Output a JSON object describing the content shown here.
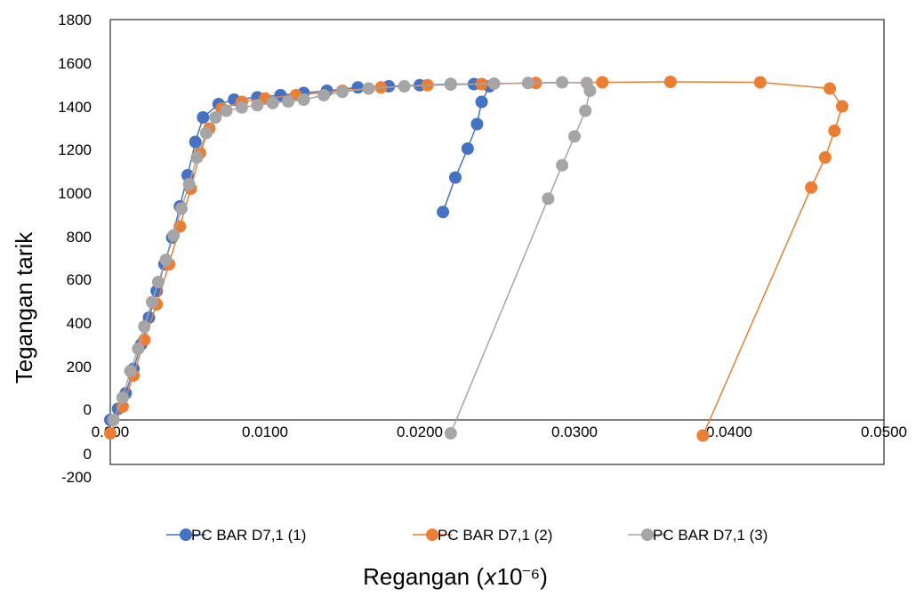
{
  "chart_data": {
    "type": "scatter",
    "xlabel": "Regangan (𝑥10⁻⁶)",
    "ylabel": "Tegangan tarik",
    "xlim": [
      0,
      0.05
    ],
    "ylim": [
      -200,
      1800
    ],
    "y_ticks": [
      "1800",
      "1600",
      "1400",
      "1200",
      "1000",
      "800",
      "600",
      "400",
      "200",
      "0",
      "0",
      "-200"
    ],
    "x_ticks": [
      "0.000",
      "0.0100",
      "0.0200",
      "0.0300",
      "0.0400",
      "0.0500"
    ],
    "grid": false,
    "legend_position": "bottom",
    "series": [
      {
        "name": "PC BAR D7,1 (1)",
        "color": "#4472c4",
        "points": [
          [
            0.0,
            0
          ],
          [
            0.0005,
            50
          ],
          [
            0.001,
            120
          ],
          [
            0.0015,
            230
          ],
          [
            0.002,
            340
          ],
          [
            0.0025,
            460
          ],
          [
            0.003,
            580
          ],
          [
            0.0035,
            700
          ],
          [
            0.004,
            820
          ],
          [
            0.0045,
            960
          ],
          [
            0.005,
            1100
          ],
          [
            0.0055,
            1250
          ],
          [
            0.006,
            1360
          ],
          [
            0.007,
            1420
          ],
          [
            0.008,
            1440
          ],
          [
            0.0095,
            1450
          ],
          [
            0.011,
            1460
          ],
          [
            0.0125,
            1470
          ],
          [
            0.014,
            1480
          ],
          [
            0.016,
            1495
          ],
          [
            0.018,
            1500
          ],
          [
            0.02,
            1505
          ],
          [
            0.022,
            1510
          ],
          [
            0.0235,
            1510
          ],
          [
            0.024,
            1510
          ],
          [
            0.0245,
            1500
          ],
          [
            0.024,
            1430
          ],
          [
            0.0237,
            1330
          ],
          [
            0.0231,
            1220
          ],
          [
            0.0223,
            1090
          ],
          [
            0.0215,
            935
          ]
        ]
      },
      {
        "name": "PC BAR D7,1 (2)",
        "color": "#ed7d31",
        "points": [
          [
            0.0,
            -60
          ],
          [
            0.0008,
            60
          ],
          [
            0.0015,
            200
          ],
          [
            0.0022,
            360
          ],
          [
            0.003,
            520
          ],
          [
            0.0038,
            700
          ],
          [
            0.0045,
            870
          ],
          [
            0.0052,
            1040
          ],
          [
            0.0058,
            1200
          ],
          [
            0.0064,
            1310
          ],
          [
            0.0072,
            1400
          ],
          [
            0.0085,
            1430
          ],
          [
            0.01,
            1445
          ],
          [
            0.012,
            1460
          ],
          [
            0.015,
            1480
          ],
          [
            0.0175,
            1495
          ],
          [
            0.0205,
            1505
          ],
          [
            0.024,
            1510
          ],
          [
            0.0275,
            1515
          ],
          [
            0.0318,
            1518
          ],
          [
            0.0362,
            1520
          ],
          [
            0.042,
            1518
          ],
          [
            0.0465,
            1490
          ],
          [
            0.0473,
            1410
          ],
          [
            0.0468,
            1300
          ],
          [
            0.0462,
            1180
          ],
          [
            0.0453,
            1045
          ],
          [
            0.0383,
            -70
          ]
        ]
      },
      {
        "name": "PC BAR D7,1 (3)",
        "color": "#a5a5a5",
        "points": [
          [
            0.0002,
            0
          ],
          [
            0.0008,
            100
          ],
          [
            0.0013,
            220
          ],
          [
            0.0018,
            320
          ],
          [
            0.0022,
            420
          ],
          [
            0.0027,
            530
          ],
          [
            0.0031,
            620
          ],
          [
            0.0036,
            720
          ],
          [
            0.0041,
            830
          ],
          [
            0.0046,
            950
          ],
          [
            0.0051,
            1060
          ],
          [
            0.0056,
            1180
          ],
          [
            0.0062,
            1290
          ],
          [
            0.0068,
            1360
          ],
          [
            0.0075,
            1390
          ],
          [
            0.0085,
            1405
          ],
          [
            0.0095,
            1415
          ],
          [
            0.0105,
            1425
          ],
          [
            0.0115,
            1432
          ],
          [
            0.0125,
            1440
          ],
          [
            0.0138,
            1460
          ],
          [
            0.015,
            1475
          ],
          [
            0.0167,
            1490
          ],
          [
            0.019,
            1500
          ],
          [
            0.022,
            1508
          ],
          [
            0.0248,
            1512
          ],
          [
            0.027,
            1515
          ],
          [
            0.0292,
            1518
          ],
          [
            0.0308,
            1515
          ],
          [
            0.031,
            1480
          ],
          [
            0.0307,
            1390
          ],
          [
            0.03,
            1275
          ],
          [
            0.0292,
            1145
          ],
          [
            0.0283,
            995
          ],
          [
            0.022,
            -60
          ]
        ]
      }
    ]
  }
}
